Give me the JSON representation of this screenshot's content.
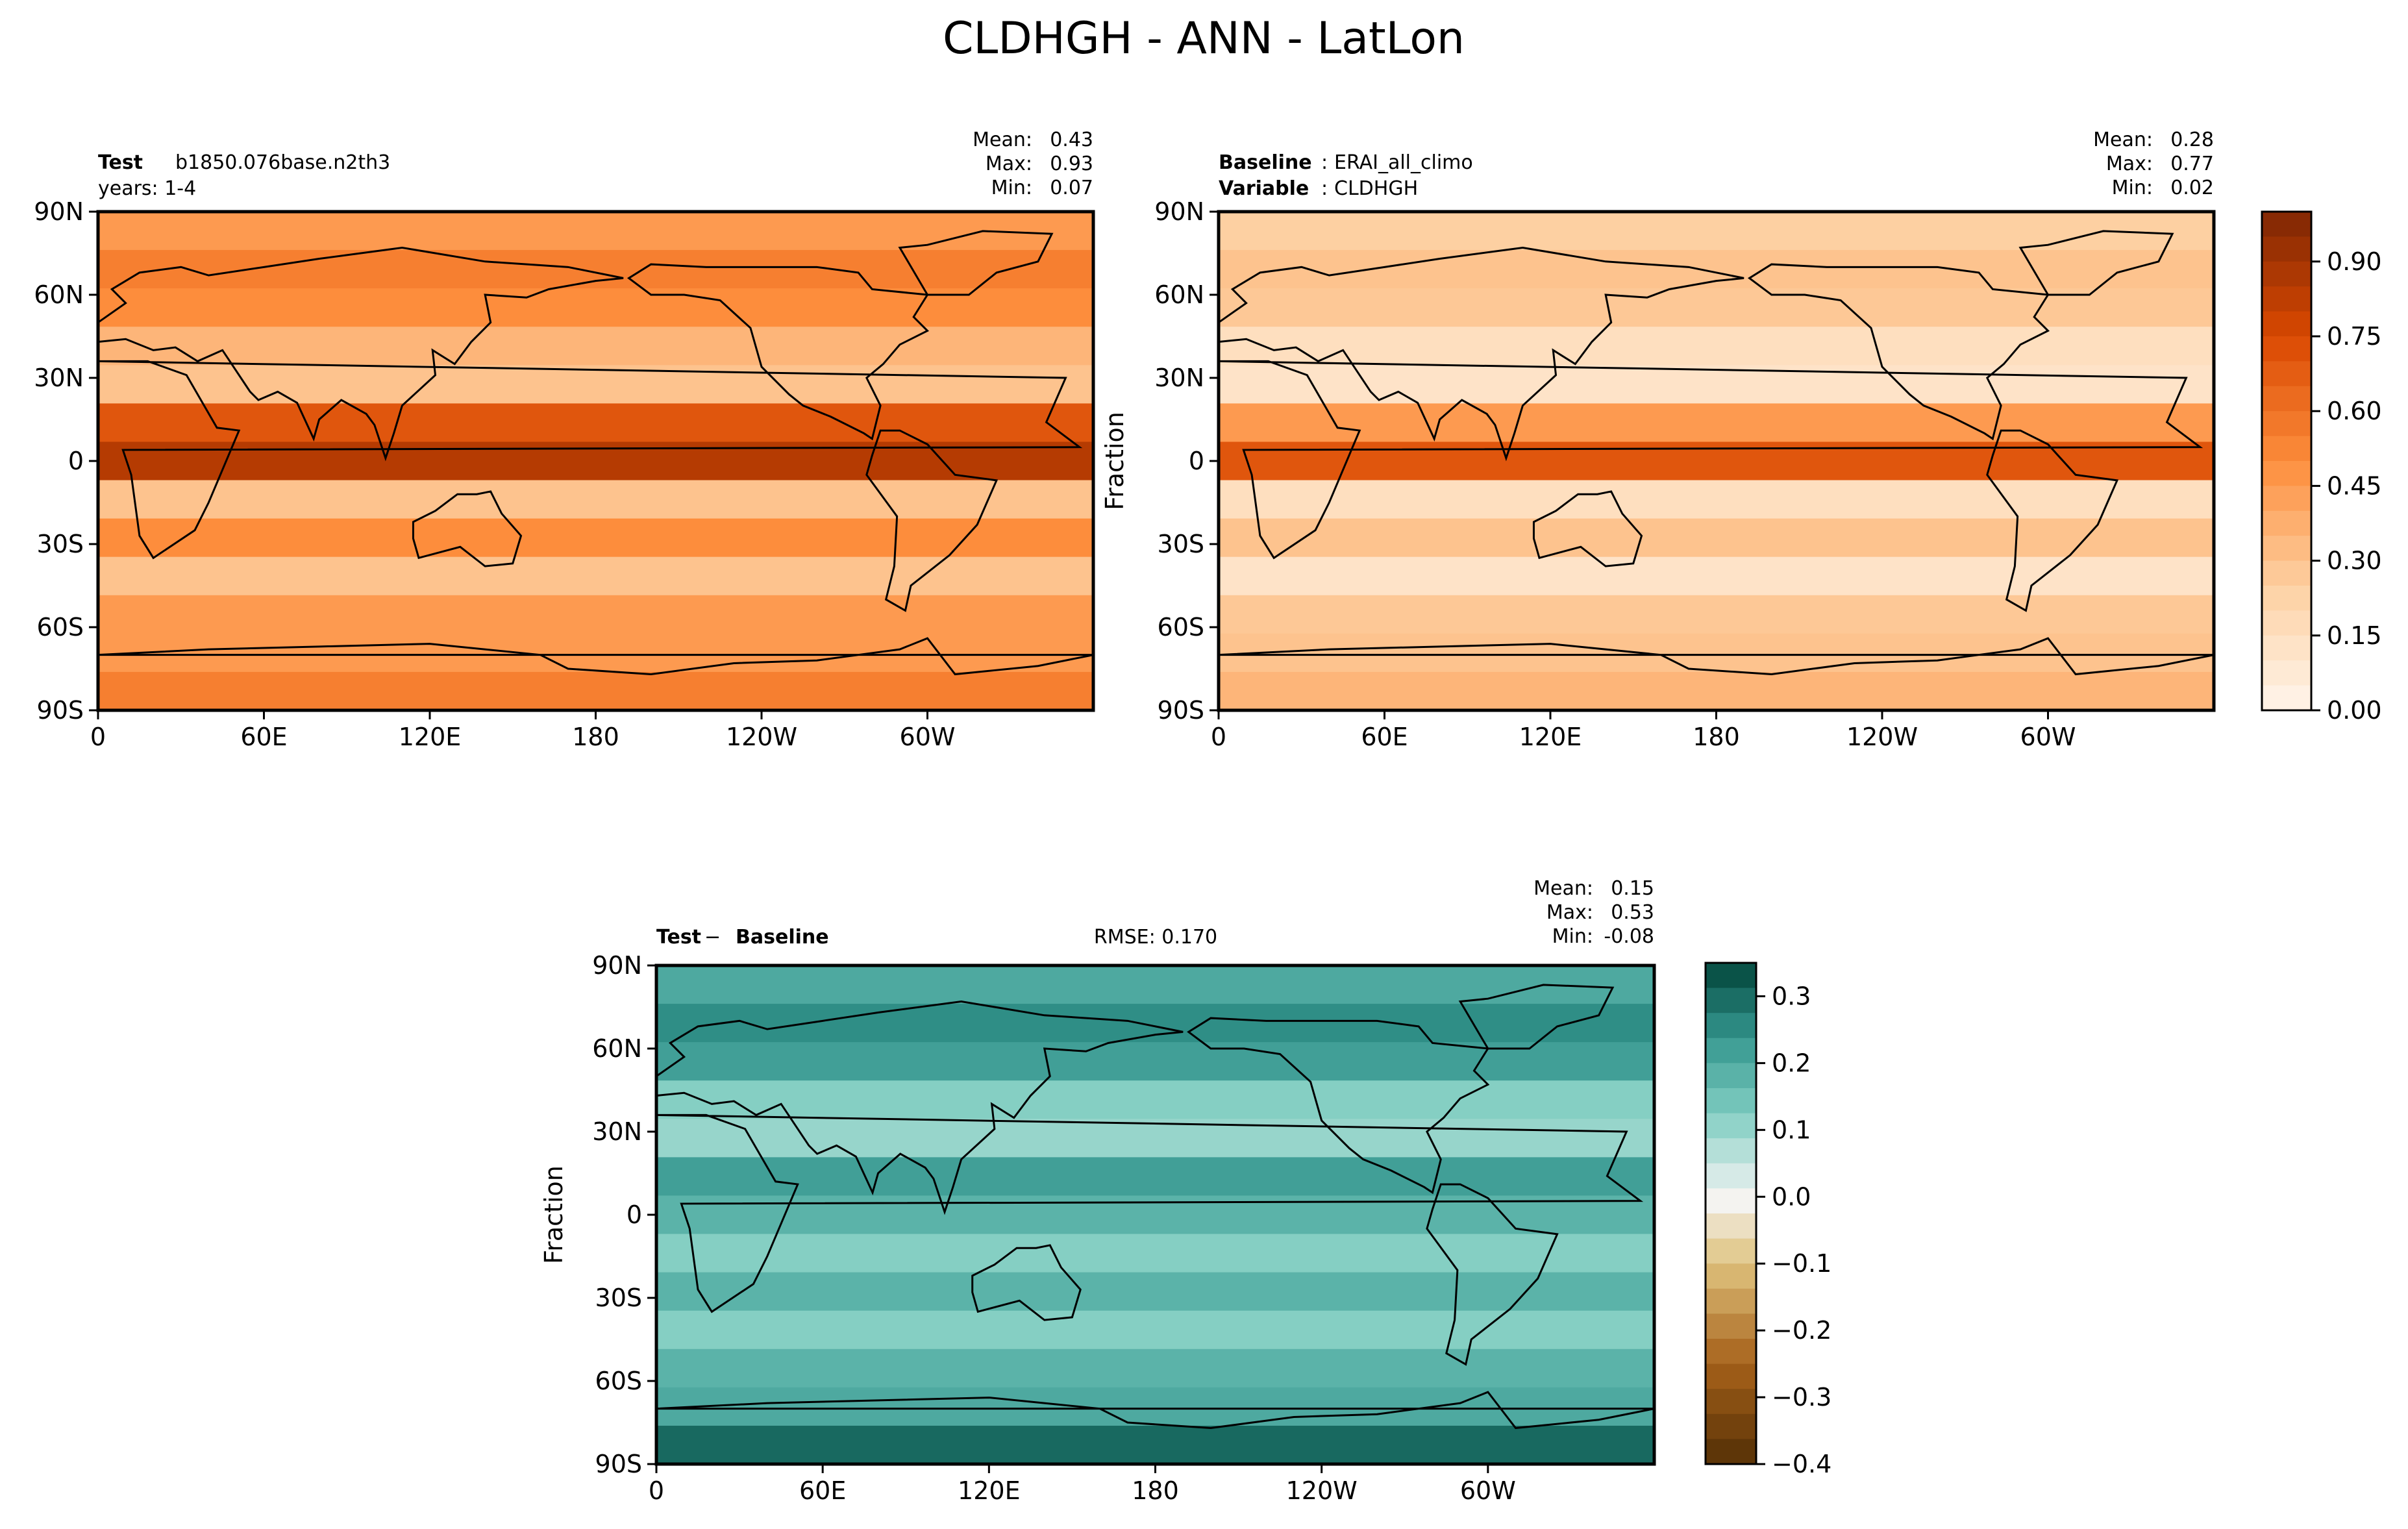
{
  "figure": {
    "title": "CLDHGH - ANN - LatLon"
  },
  "chart_data": [
    {
      "type": "heatmap",
      "panel": "test",
      "title_left_label": "Test",
      "title_left_value": "b1850.076base.n2th3",
      "title_left_line2": "years: 1-4",
      "stats": {
        "mean_label": "Mean:",
        "mean": "0.43",
        "max_label": "Max:",
        "max": "0.93",
        "min_label": "Min:",
        "min": "0.07"
      },
      "xlabel": "",
      "ylabel": "",
      "xticks": [
        "0",
        "60E",
        "120E",
        "180",
        "120W",
        "60W"
      ],
      "yticks": [
        "90N",
        "60N",
        "30N",
        "0",
        "30S",
        "60S",
        "90S"
      ],
      "xlim": [
        0,
        360
      ],
      "ylim": [
        -90,
        90
      ],
      "colormap": "Oranges",
      "zone_values": [
        0.45,
        0.55,
        0.5,
        0.35,
        0.3,
        0.7,
        0.85,
        0.3,
        0.5,
        0.3,
        0.45,
        0.45,
        0.55
      ]
    },
    {
      "type": "heatmap",
      "panel": "baseline",
      "title_left_label": "Baseline",
      "title_left_value": "ERAI_all_climo",
      "title_left_line2_label": "Variable",
      "title_left_line2_value": "CLDHGH",
      "stats": {
        "mean_label": "Mean:",
        "mean": "0.28",
        "max_label": "Max:",
        "max": "0.77",
        "min_label": "Min:",
        "min": "0.02"
      },
      "xlabel": "",
      "ylabel": "Fraction",
      "xticks": [
        "0",
        "60E",
        "120E",
        "180",
        "120W",
        "60W"
      ],
      "yticks": [
        "90N",
        "60N",
        "30N",
        "0",
        "30S",
        "60S",
        "90S"
      ],
      "xlim": [
        0,
        360
      ],
      "ylim": [
        -90,
        90
      ],
      "colormap": "Oranges",
      "zone_values": [
        0.25,
        0.3,
        0.28,
        0.15,
        0.12,
        0.45,
        0.7,
        0.15,
        0.3,
        0.12,
        0.28,
        0.3,
        0.35
      ],
      "colorbar": {
        "ticks": [
          "0.00",
          "0.15",
          "0.30",
          "0.45",
          "0.60",
          "0.75",
          "0.90"
        ],
        "tick_values": [
          0,
          0.15,
          0.3,
          0.45,
          0.6,
          0.75,
          0.9
        ],
        "range": [
          0,
          1.0
        ]
      }
    },
    {
      "type": "heatmap",
      "panel": "difference",
      "title_left_label": "Test",
      "title_left_sep": " − ",
      "title_left_label2": "Baseline",
      "title_center": "RMSE: 0.170",
      "stats": {
        "mean_label": "Mean:",
        "mean": "0.15",
        "max_label": "Max:",
        "max": "0.53",
        "min_label": "Min:",
        "min": "-0.08"
      },
      "xlabel": "",
      "ylabel": "Fraction",
      "xticks": [
        "0",
        "60E",
        "120E",
        "180",
        "120W",
        "60W"
      ],
      "yticks": [
        "90N",
        "60N",
        "30N",
        "0",
        "30S",
        "60S",
        "90S"
      ],
      "xlim": [
        0,
        360
      ],
      "ylim": [
        -90,
        90
      ],
      "colormap": "BrBG",
      "zone_values": [
        0.2,
        0.25,
        0.22,
        0.12,
        0.1,
        0.22,
        0.18,
        0.12,
        0.18,
        0.12,
        0.18,
        0.2,
        0.3
      ],
      "colorbar": {
        "ticks": [
          "0.3",
          "0.2",
          "0.1",
          "0.0",
          "−0.1",
          "−0.2",
          "−0.3",
          "−0.4"
        ],
        "tick_values": [
          0.3,
          0.2,
          0.1,
          0.0,
          -0.1,
          -0.2,
          -0.3,
          -0.4
        ],
        "range": [
          -0.4,
          0.35
        ]
      }
    }
  ]
}
